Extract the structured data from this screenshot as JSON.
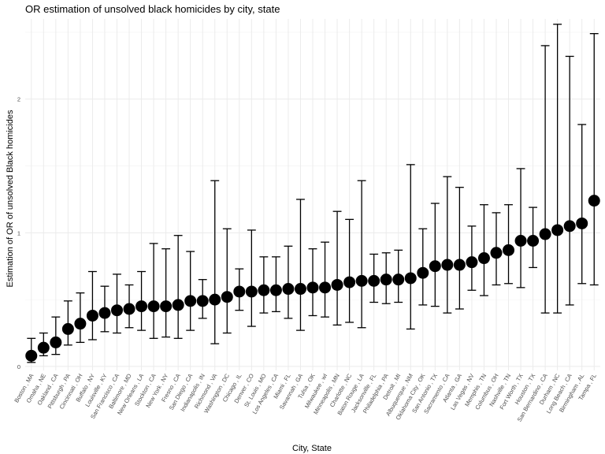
{
  "chart_data": {
    "type": "scatter",
    "title": "OR estimation of unsolved black homicides by city, state",
    "xlabel": "City, State",
    "ylabel": "Estimation of OR of unsolved Black homicides",
    "ylim": [
      -0.03,
      2.6
    ],
    "yticks": [
      0,
      1,
      2
    ],
    "grid": true,
    "legend": "none",
    "error_bars": true,
    "point_color": "#000000",
    "categories": [
      "Boston , MA",
      "Omaha , NE",
      "Oakland , CA",
      "Pittsburgh , PA",
      "Cincinnati , OH",
      "Buffalo , NY",
      "Louisville , KY",
      "San Francisco , CA",
      "Baltimore , MD",
      "New Orleans , LA",
      "Stockton , CA",
      "New York , NY",
      "Fresno , CA",
      "San Diego , CA",
      "Indianapolis , IN",
      "Richmond , VA",
      "Washington , DC",
      "Chicago , IL",
      "Denver , CO",
      "St. Louis , MO",
      "Los Angeles , CA",
      "Miami , FL",
      "Savannah , GA",
      "Tulsa , OK",
      "Milwaukee , wI",
      "Minneapolis , MN",
      "Charlotte , NC",
      "Baton Rouge , LA",
      "Jacksonville , FL",
      "Philadelphia , PA",
      "Detroit , MI",
      "Albuquerque , NM",
      "Oklahoma City , OK",
      "San Antonio , TX",
      "Sacramento , CA",
      "Atlanta , GA",
      "Las Vegas , NV",
      "Memphis , TN",
      "Columbus , OH",
      "Nashville , TN",
      "Fort Worth , TX",
      "Houston , TX",
      "San Bernardino , CA",
      "Durham , NC",
      "Long Beach , CA",
      "Birmingham , AL",
      "Tampa , FL"
    ],
    "estimate": [
      0.08,
      0.14,
      0.18,
      0.28,
      0.32,
      0.38,
      0.4,
      0.42,
      0.43,
      0.45,
      0.45,
      0.45,
      0.46,
      0.49,
      0.49,
      0.5,
      0.52,
      0.56,
      0.56,
      0.57,
      0.57,
      0.58,
      0.58,
      0.59,
      0.59,
      0.61,
      0.63,
      0.64,
      0.64,
      0.65,
      0.65,
      0.66,
      0.7,
      0.75,
      0.76,
      0.76,
      0.78,
      0.81,
      0.85,
      0.87,
      0.94,
      0.94,
      0.99,
      1.02,
      1.05,
      1.07,
      1.24
    ],
    "ci_low": [
      0.03,
      0.08,
      0.09,
      0.16,
      0.18,
      0.2,
      0.26,
      0.25,
      0.29,
      0.27,
      0.21,
      0.22,
      0.21,
      0.27,
      0.36,
      0.17,
      0.25,
      0.42,
      0.3,
      0.4,
      0.41,
      0.36,
      0.27,
      0.38,
      0.37,
      0.31,
      0.33,
      0.29,
      0.48,
      0.47,
      0.48,
      0.28,
      0.46,
      0.45,
      0.4,
      0.43,
      0.57,
      0.53,
      0.61,
      0.62,
      0.59,
      0.74,
      0.4,
      0.4,
      0.46,
      0.62,
      0.61
    ],
    "ci_high": [
      0.21,
      0.25,
      0.37,
      0.49,
      0.55,
      0.71,
      0.6,
      0.69,
      0.61,
      0.71,
      0.92,
      0.88,
      0.98,
      0.86,
      0.65,
      1.39,
      1.03,
      0.73,
      1.02,
      0.82,
      0.82,
      0.9,
      1.25,
      0.88,
      0.93,
      1.16,
      1.1,
      1.39,
      0.84,
      0.85,
      0.87,
      1.51,
      1.03,
      1.22,
      1.42,
      1.34,
      1.05,
      1.21,
      1.15,
      1.21,
      1.48,
      1.19,
      2.4,
      2.56,
      2.32,
      1.81,
      2.49
    ]
  }
}
